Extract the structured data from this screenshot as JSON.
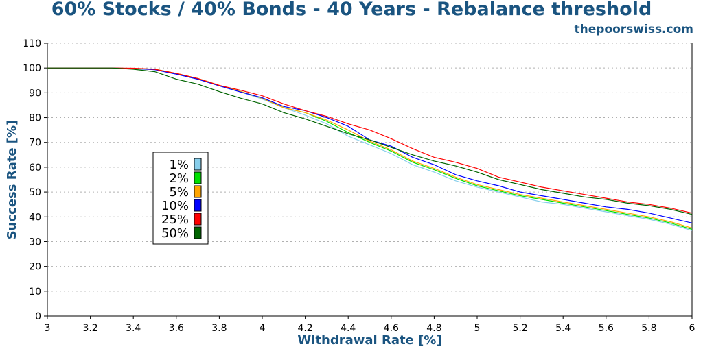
{
  "chart_data": {
    "type": "line",
    "title": "60% Stocks / 40% Bonds - 40 Years - Rebalance threshold",
    "subtitle": "thepoorswiss.com",
    "xlabel": "Withdrawal Rate [%]",
    "ylabel": "Success Rate [%]",
    "xlim": [
      3,
      6
    ],
    "ylim": [
      0,
      110
    ],
    "x_ticks": [
      "3",
      "3.2",
      "3.4",
      "3.6",
      "3.8",
      "4",
      "4.2",
      "4.4",
      "4.6",
      "4.8",
      "5",
      "5.2",
      "5.4",
      "5.6",
      "5.8",
      "6"
    ],
    "y_ticks": [
      "0",
      "10",
      "20",
      "30",
      "40",
      "50",
      "60",
      "70",
      "80",
      "90",
      "100",
      "110"
    ],
    "grid": "horizontal dotted",
    "legend_position": "left-middle",
    "x": [
      3.0,
      3.1,
      3.2,
      3.3,
      3.4,
      3.5,
      3.6,
      3.7,
      3.8,
      3.9,
      4.0,
      4.1,
      4.2,
      4.3,
      4.4,
      4.5,
      4.6,
      4.7,
      4.8,
      4.9,
      5.0,
      5.1,
      5.2,
      5.3,
      5.4,
      5.5,
      5.6,
      5.7,
      5.8,
      5.9,
      6.0
    ],
    "series": [
      {
        "name": "1%",
        "color": "#87ceeb",
        "values": [
          100,
          100,
          100,
          100,
          99.7,
          99.3,
          97.5,
          95.5,
          92.8,
          90.3,
          87.5,
          84.0,
          81.0,
          77.5,
          72.5,
          69.0,
          65.5,
          61.0,
          58.0,
          54.5,
          52.0,
          50.0,
          48.0,
          46.0,
          45.0,
          43.5,
          42.0,
          40.5,
          39.0,
          37.0,
          34.5
        ]
      },
      {
        "name": "2%",
        "color": "#00e000",
        "values": [
          100,
          100,
          100,
          100,
          99.8,
          99.5,
          97.8,
          95.8,
          93.0,
          90.5,
          87.8,
          84.0,
          82.0,
          78.5,
          74.0,
          70.0,
          66.5,
          62.0,
          59.0,
          55.5,
          52.5,
          50.5,
          48.5,
          47.0,
          45.5,
          44.0,
          42.5,
          41.0,
          39.5,
          37.5,
          35.0
        ]
      },
      {
        "name": "5%",
        "color": "#ffa500",
        "values": [
          100,
          100,
          100,
          100,
          99.8,
          99.5,
          97.8,
          95.8,
          93.0,
          90.5,
          87.8,
          84.0,
          82.0,
          79.0,
          75.0,
          70.5,
          67.0,
          62.5,
          59.5,
          56.0,
          53.0,
          51.0,
          49.0,
          47.5,
          46.0,
          44.5,
          43.0,
          41.5,
          40.0,
          38.0,
          35.5
        ]
      },
      {
        "name": "10%",
        "color": "#0000ff",
        "values": [
          100,
          100,
          100,
          100,
          99.8,
          99.3,
          97.5,
          95.5,
          92.8,
          90.3,
          88.0,
          84.5,
          82.8,
          80.0,
          76.5,
          71.0,
          68.5,
          64.0,
          61.0,
          57.0,
          54.5,
          52.5,
          50.0,
          48.5,
          47.0,
          45.5,
          44.0,
          43.0,
          41.5,
          39.5,
          37.5
        ]
      },
      {
        "name": "25%",
        "color": "#ff0000",
        "values": [
          100,
          100,
          100,
          100,
          99.9,
          99.5,
          97.8,
          95.8,
          93.0,
          91.0,
          88.8,
          85.5,
          82.8,
          80.5,
          77.5,
          75.0,
          71.5,
          67.5,
          64.0,
          62.0,
          59.5,
          56.0,
          54.0,
          52.0,
          50.5,
          49.0,
          47.5,
          46.0,
          45.0,
          43.5,
          41.5
        ]
      },
      {
        "name": "50%",
        "color": "#006400",
        "values": [
          100,
          100,
          100,
          100,
          99.5,
          98.5,
          95.5,
          93.5,
          90.5,
          87.8,
          85.5,
          82.0,
          79.5,
          76.5,
          73.5,
          71.0,
          68.0,
          65.0,
          62.5,
          60.5,
          58.0,
          55.0,
          53.0,
          51.0,
          49.5,
          48.0,
          47.0,
          45.5,
          44.5,
          43.0,
          41.0
        ]
      }
    ]
  }
}
